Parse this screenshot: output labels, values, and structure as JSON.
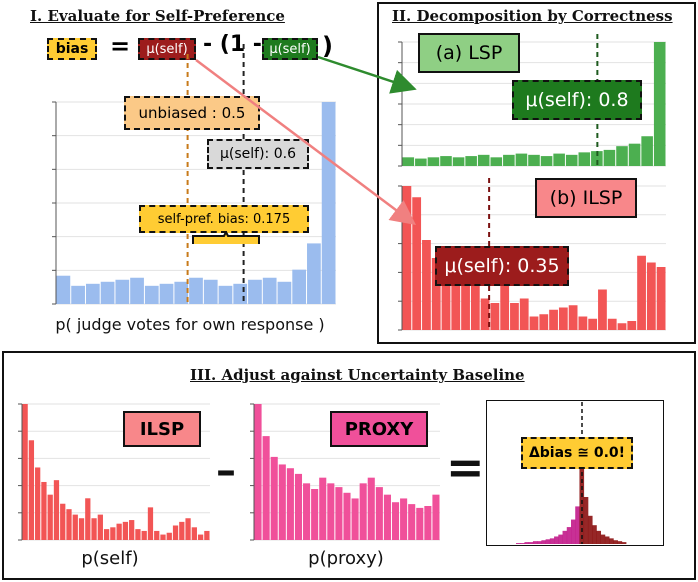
{
  "panel1": {
    "title": "I. Evaluate for Self-Preference",
    "formula": {
      "bias": "bias",
      "equals": "=",
      "mu_self_red": "μ(self)",
      "minus_open": "- (1 -",
      "mu_self_green": "μ(self)",
      "close": ")"
    },
    "unbiased_label": "unbiased : 0.5",
    "mu_label": "μ(self): 0.6",
    "bias_label": "self-pref. bias: 0.175",
    "xlabel": "p( judge votes for own response )"
  },
  "panel2": {
    "title": "II. Decomposition by Correctness",
    "lsp_label": "(a) LSP",
    "lsp_mu": "μ(self): 0.8",
    "ilsp_label": "(b) ILSP",
    "ilsp_mu": "μ(self): 0.35"
  },
  "panel3": {
    "title": "III. Adjust against Uncertainty Baseline",
    "ilsp_box": "ILSP",
    "proxy_box": "PROXY",
    "minus": "–",
    "equals": "=",
    "delta_label": "Δbias ≅ 0.0!",
    "xlabel_self": "p(self)",
    "xlabel_proxy": "p(proxy)"
  },
  "colors": {
    "blue": "#9bbcee",
    "green": "#4caf50",
    "red": "#f25555",
    "pink": "#f0509a",
    "dark_red": "#9c1c1c",
    "dark_green": "#1e7a1e",
    "orange_tag": "#fbc987",
    "yellow_tag": "#ffcc33",
    "gray_tag": "#d9d9d9"
  },
  "chart_data": [
    {
      "name": "overall",
      "type": "bar",
      "values": [
        14,
        9,
        10,
        11,
        12,
        13,
        9,
        10,
        11,
        13,
        12,
        9,
        10,
        12,
        13,
        11,
        17,
        30,
        100
      ],
      "mean": 0.6,
      "unbiased": 0.5
    },
    {
      "name": "lsp",
      "type": "bar",
      "values": [
        7,
        6,
        7,
        8,
        7,
        8,
        9,
        7,
        9,
        10,
        9,
        8,
        10,
        9,
        11,
        12,
        13,
        16,
        18,
        24,
        100
      ],
      "mean": 0.8
    },
    {
      "name": "ilsp",
      "type": "bar",
      "values": [
        64,
        59,
        40,
        32,
        25,
        36,
        28,
        23,
        14,
        12,
        23,
        12,
        14,
        6,
        7,
        9,
        10,
        11,
        6,
        5,
        18,
        5,
        3,
        4,
        33,
        30,
        28
      ],
      "mean": 0.35
    },
    {
      "name": "ilsp_small",
      "type": "bar",
      "values": [
        75,
        55,
        40,
        32,
        25,
        33,
        20,
        17,
        14,
        12,
        23,
        12,
        14,
        6,
        7,
        9,
        10,
        11,
        6,
        5,
        18,
        5,
        3,
        4,
        8,
        10,
        12,
        7,
        3,
        5
      ]
    },
    {
      "name": "proxy",
      "type": "bar",
      "values": [
        72,
        55,
        44,
        40,
        38,
        35,
        30,
        27,
        33,
        30,
        28,
        25,
        22,
        30,
        33,
        28,
        24,
        20,
        22,
        19,
        17,
        18,
        24
      ]
    },
    {
      "name": "delta",
      "type": "histogram",
      "values": [
        1,
        1,
        2,
        2,
        3,
        3,
        4,
        5,
        6,
        8,
        10,
        14,
        18,
        26,
        40,
        100,
        50,
        30,
        20,
        14,
        10,
        8,
        6,
        4,
        3,
        2
      ]
    }
  ]
}
